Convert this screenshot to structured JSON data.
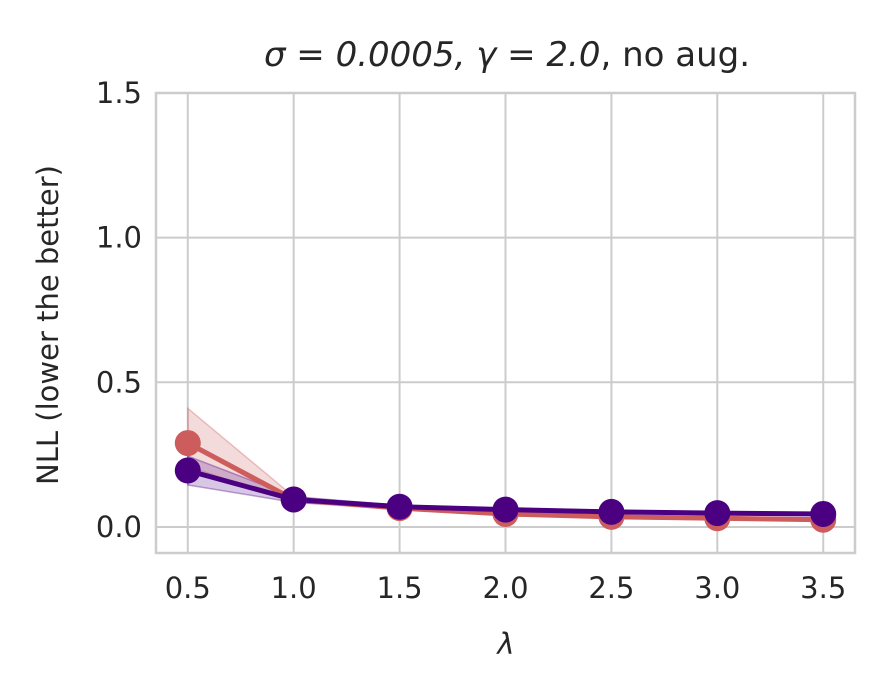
{
  "chart_data": {
    "type": "line",
    "title": "σ = 0.0005, γ = 2.0, no aug.",
    "title_parts": {
      "main": "σ = 0.0005, γ = 2.0",
      "suffix": ", no aug."
    },
    "xlabel": "λ",
    "ylabel": "NLL (lower the better)",
    "x": [
      0.5,
      1.0,
      1.5,
      2.0,
      2.5,
      3.0,
      3.5
    ],
    "xticks": [
      "0.5",
      "1.0",
      "1.5",
      "2.0",
      "2.5",
      "3.0",
      "3.5"
    ],
    "yticks": [
      "0.0",
      "0.5",
      "1.0",
      "1.5"
    ],
    "xlim": [
      0.35,
      3.65
    ],
    "ylim": [
      -0.09,
      1.5
    ],
    "grid": true,
    "legend": "none",
    "series": [
      {
        "color": "#cd5c5c",
        "values": [
          0.29,
          0.095,
          0.065,
          0.045,
          0.035,
          0.03,
          0.025
        ],
        "lower": [
          0.21,
          0.085,
          0.06,
          0.04,
          0.03,
          0.025,
          0.02
        ],
        "upper": [
          0.41,
          0.105,
          0.07,
          0.05,
          0.04,
          0.035,
          0.03
        ]
      },
      {
        "color": "#4b0082",
        "values": [
          0.195,
          0.095,
          0.07,
          0.06,
          0.052,
          0.048,
          0.045
        ],
        "lower": [
          0.145,
          0.085,
          0.065,
          0.055,
          0.047,
          0.043,
          0.04
        ],
        "upper": [
          0.245,
          0.105,
          0.075,
          0.065,
          0.057,
          0.053,
          0.05
        ]
      }
    ]
  }
}
